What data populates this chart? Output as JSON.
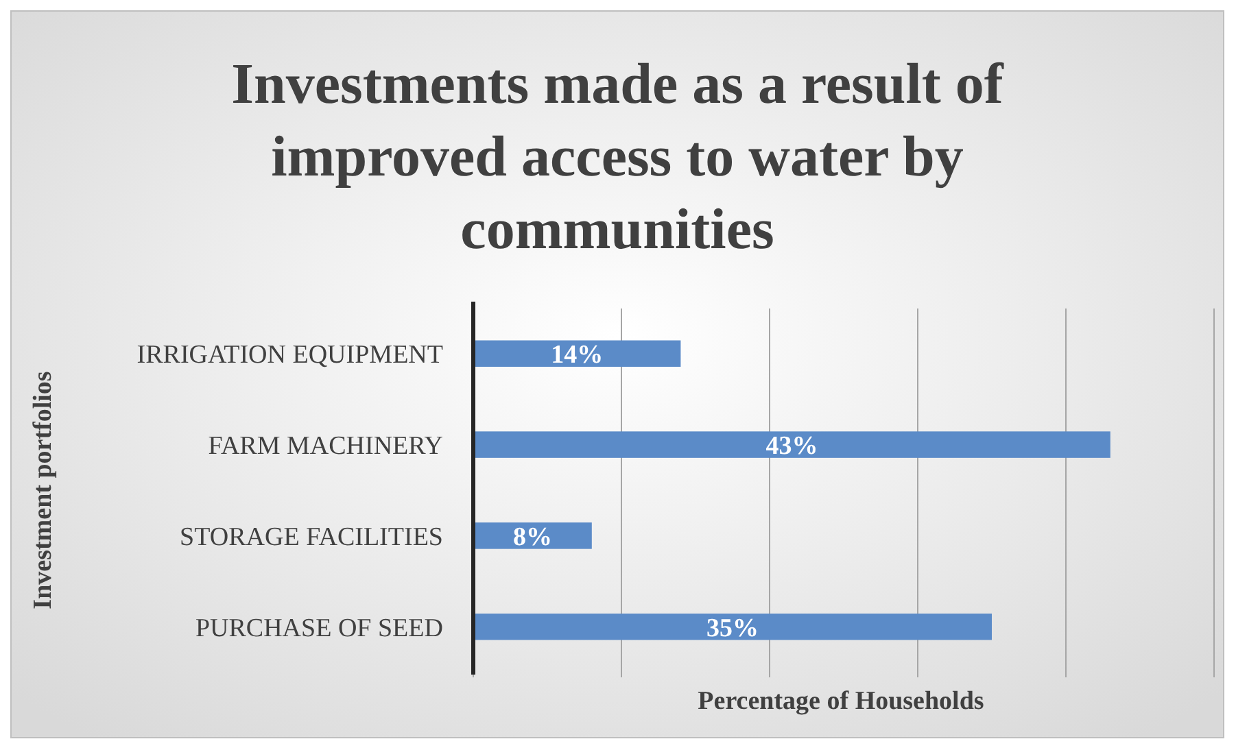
{
  "chart_data": {
    "type": "bar",
    "orientation": "horizontal",
    "title": "Investments made as a result of improved access to water by communities",
    "xlabel": "Percentage of Households",
    "ylabel": "Investment portfolios",
    "categories": [
      "IRRIGATION EQUIPMENT",
      "FARM MACHINERY",
      "STORAGE FACILITIES",
      "PURCHASE OF SEED"
    ],
    "values": [
      14,
      43,
      8,
      35
    ],
    "value_labels": [
      "14%",
      "43%",
      "8%",
      "35%"
    ],
    "color": "#5b8bc8",
    "xlim": [
      0,
      50
    ],
    "xticks": [
      {
        "value": 0,
        "label": null
      },
      {
        "value": 10,
        "label": null
      },
      {
        "value": 20,
        "label": null
      },
      {
        "value": 30,
        "label": null
      },
      {
        "value": 40,
        "label": null
      },
      {
        "value": 50,
        "label": null
      }
    ],
    "grid": "x",
    "tick_labels": "y"
  }
}
